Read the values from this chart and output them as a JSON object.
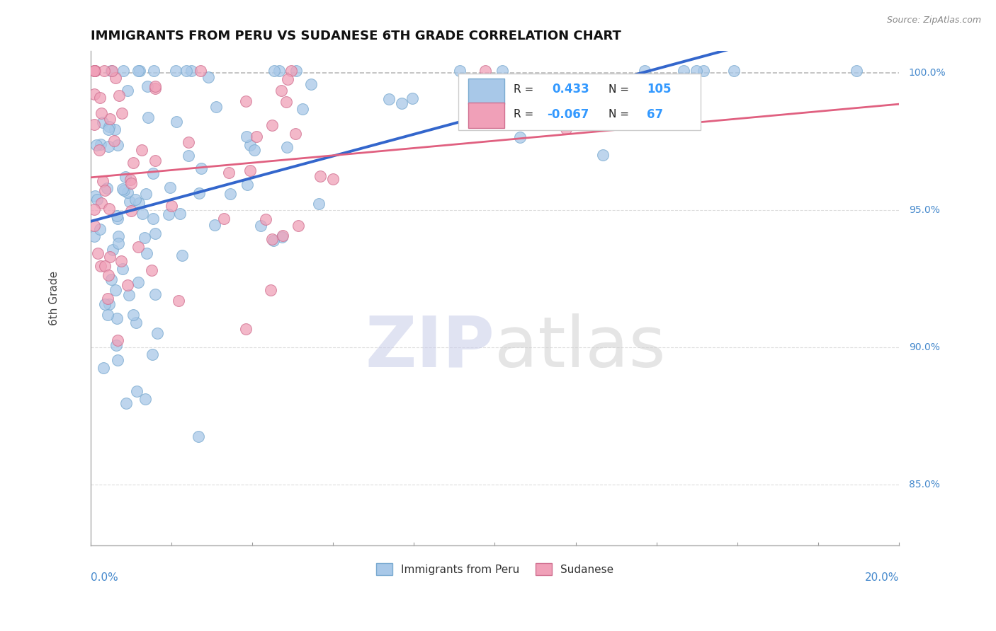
{
  "title": "IMMIGRANTS FROM PERU VS SUDANESE 6TH GRADE CORRELATION CHART",
  "source": "Source: ZipAtlas.com",
  "ylabel": "6th Grade",
  "xlim": [
    0.0,
    0.2
  ],
  "ylim": [
    0.828,
    1.008
  ],
  "series1_label": "Immigrants from Peru",
  "series1_R": "0.433",
  "series1_N": "105",
  "series1_color": "#a8c8e8",
  "series1_edge": "#7aaad0",
  "series2_label": "Sudanese",
  "series2_R": "-0.067",
  "series2_N": "67",
  "series2_color": "#f0a0b8",
  "series2_edge": "#d07090",
  "trend1_color": "#3366cc",
  "trend2_color": "#e06080",
  "watermark_ZIP_color": "#c8cce8",
  "watermark_atlas_color": "#d0d0d0",
  "dashed_line_color": "#bbbbbb",
  "background_color": "#ffffff",
  "title_color": "#111111",
  "axis_label_color": "#4488cc",
  "text_color": "#111111",
  "legend_val_color": "#3399ff",
  "grid_color": "#dddddd"
}
